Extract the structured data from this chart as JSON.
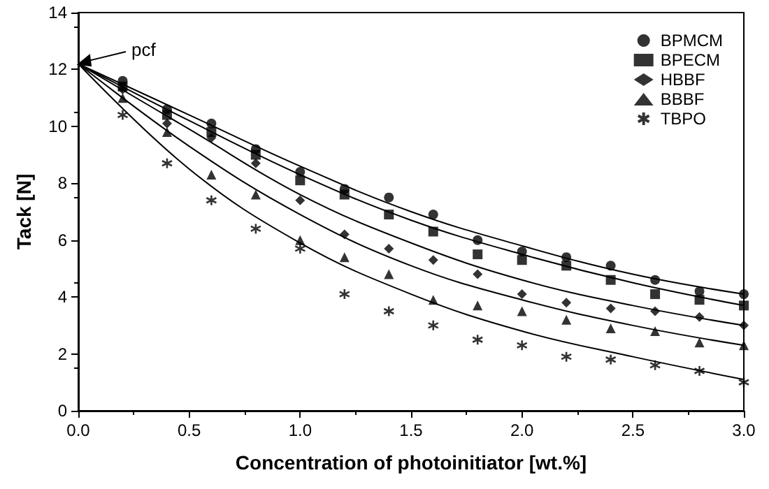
{
  "chart_data": {
    "type": "scatter",
    "xlabel": "Concentration of photoinitiator [wt.%]",
    "ylabel": "Tack [N]",
    "x": [
      0.2,
      0.4,
      0.6,
      0.8,
      1.0,
      1.2,
      1.4,
      1.6,
      1.8,
      2.0,
      2.2,
      2.4,
      2.6,
      2.8,
      3.0
    ],
    "series": [
      {
        "name": "BPMCM",
        "color": "#000000",
        "marker": "circle",
        "values": [
          11.6,
          10.6,
          10.1,
          9.2,
          8.4,
          7.8,
          7.5,
          6.9,
          6.0,
          5.6,
          5.4,
          5.1,
          4.6,
          4.2,
          4.1
        ]
      },
      {
        "name": "BPECM",
        "color": "#000000",
        "marker": "square",
        "values": [
          11.4,
          10.4,
          9.8,
          9.0,
          8.1,
          7.6,
          6.9,
          6.3,
          5.5,
          5.3,
          5.1,
          4.6,
          4.1,
          3.9,
          3.7
        ]
      },
      {
        "name": "HBBF",
        "color": "#000000",
        "marker": "diamond",
        "values": [
          11.3,
          10.1,
          9.6,
          8.7,
          7.4,
          6.2,
          5.7,
          5.3,
          4.8,
          4.1,
          3.8,
          3.6,
          3.5,
          3.3,
          3.0
        ]
      },
      {
        "name": "BBBF",
        "color": "#000000",
        "marker": "triangle",
        "values": [
          11.0,
          9.8,
          8.3,
          7.6,
          6.0,
          5.4,
          4.8,
          3.9,
          3.7,
          3.5,
          3.2,
          2.9,
          2.8,
          2.4,
          2.3
        ]
      },
      {
        "name": "TBPO",
        "color": "#000000",
        "marker": "cross",
        "values": [
          10.4,
          8.7,
          7.4,
          6.4,
          5.7,
          4.1,
          3.5,
          3.0,
          2.5,
          2.3,
          1.9,
          1.8,
          1.6,
          1.4,
          1.0
        ]
      },
      {
        "type": "line",
        "color": "#000000",
        "marker": "none",
        "x": [
          0,
          0.5,
          1.0,
          1.5,
          2.0,
          2.5,
          3.0
        ],
        "values": [
          12.2,
          10.4,
          8.6,
          7.0,
          5.8,
          4.8,
          4.1
        ]
      },
      {
        "type": "line",
        "color": "#000000",
        "marker": "none",
        "x": [
          0,
          0.5,
          1.0,
          1.5,
          2.0,
          2.5,
          3.0
        ],
        "values": [
          12.2,
          10.2,
          8.3,
          6.7,
          5.5,
          4.5,
          3.7
        ]
      },
      {
        "type": "line",
        "color": "#000000",
        "marker": "none",
        "x": [
          0,
          0.5,
          1.0,
          1.5,
          2.0,
          2.5,
          3.0
        ],
        "values": [
          12.2,
          9.9,
          7.6,
          5.9,
          4.6,
          3.7,
          3.0
        ]
      },
      {
        "type": "line",
        "color": "#000000",
        "marker": "none",
        "x": [
          0,
          0.5,
          1.0,
          1.5,
          2.0,
          2.5,
          3.0
        ],
        "values": [
          12.2,
          9.3,
          6.9,
          5.1,
          3.9,
          3.0,
          2.3
        ]
      },
      {
        "type": "line",
        "color": "#000000",
        "marker": "none",
        "x": [
          0,
          0.5,
          1.0,
          1.5,
          2.0,
          2.5,
          3.0
        ],
        "values": [
          12.2,
          8.5,
          5.9,
          4.1,
          2.8,
          1.9,
          1.1
        ]
      }
    ],
    "annotations": [
      {
        "text": "pcf",
        "x": 0,
        "y": 12.2
      }
    ],
    "xlim": [
      0,
      3.0
    ],
    "xticks": [
      {
        "value": 0,
        "label": "0.0"
      },
      {
        "value": 0.5,
        "label": "0.5"
      },
      {
        "value": 1,
        "label": "1.0"
      },
      {
        "value": 1.5,
        "label": "1.5"
      },
      {
        "value": 2,
        "label": "2.0"
      },
      {
        "value": 2.5,
        "label": "2.5"
      },
      {
        "value": 3,
        "label": "3.0"
      }
    ],
    "ylim": [
      0,
      14
    ],
    "yticks": [
      0,
      2,
      4,
      6,
      8,
      10,
      12,
      14
    ],
    "grid": false,
    "legend": "top right"
  }
}
